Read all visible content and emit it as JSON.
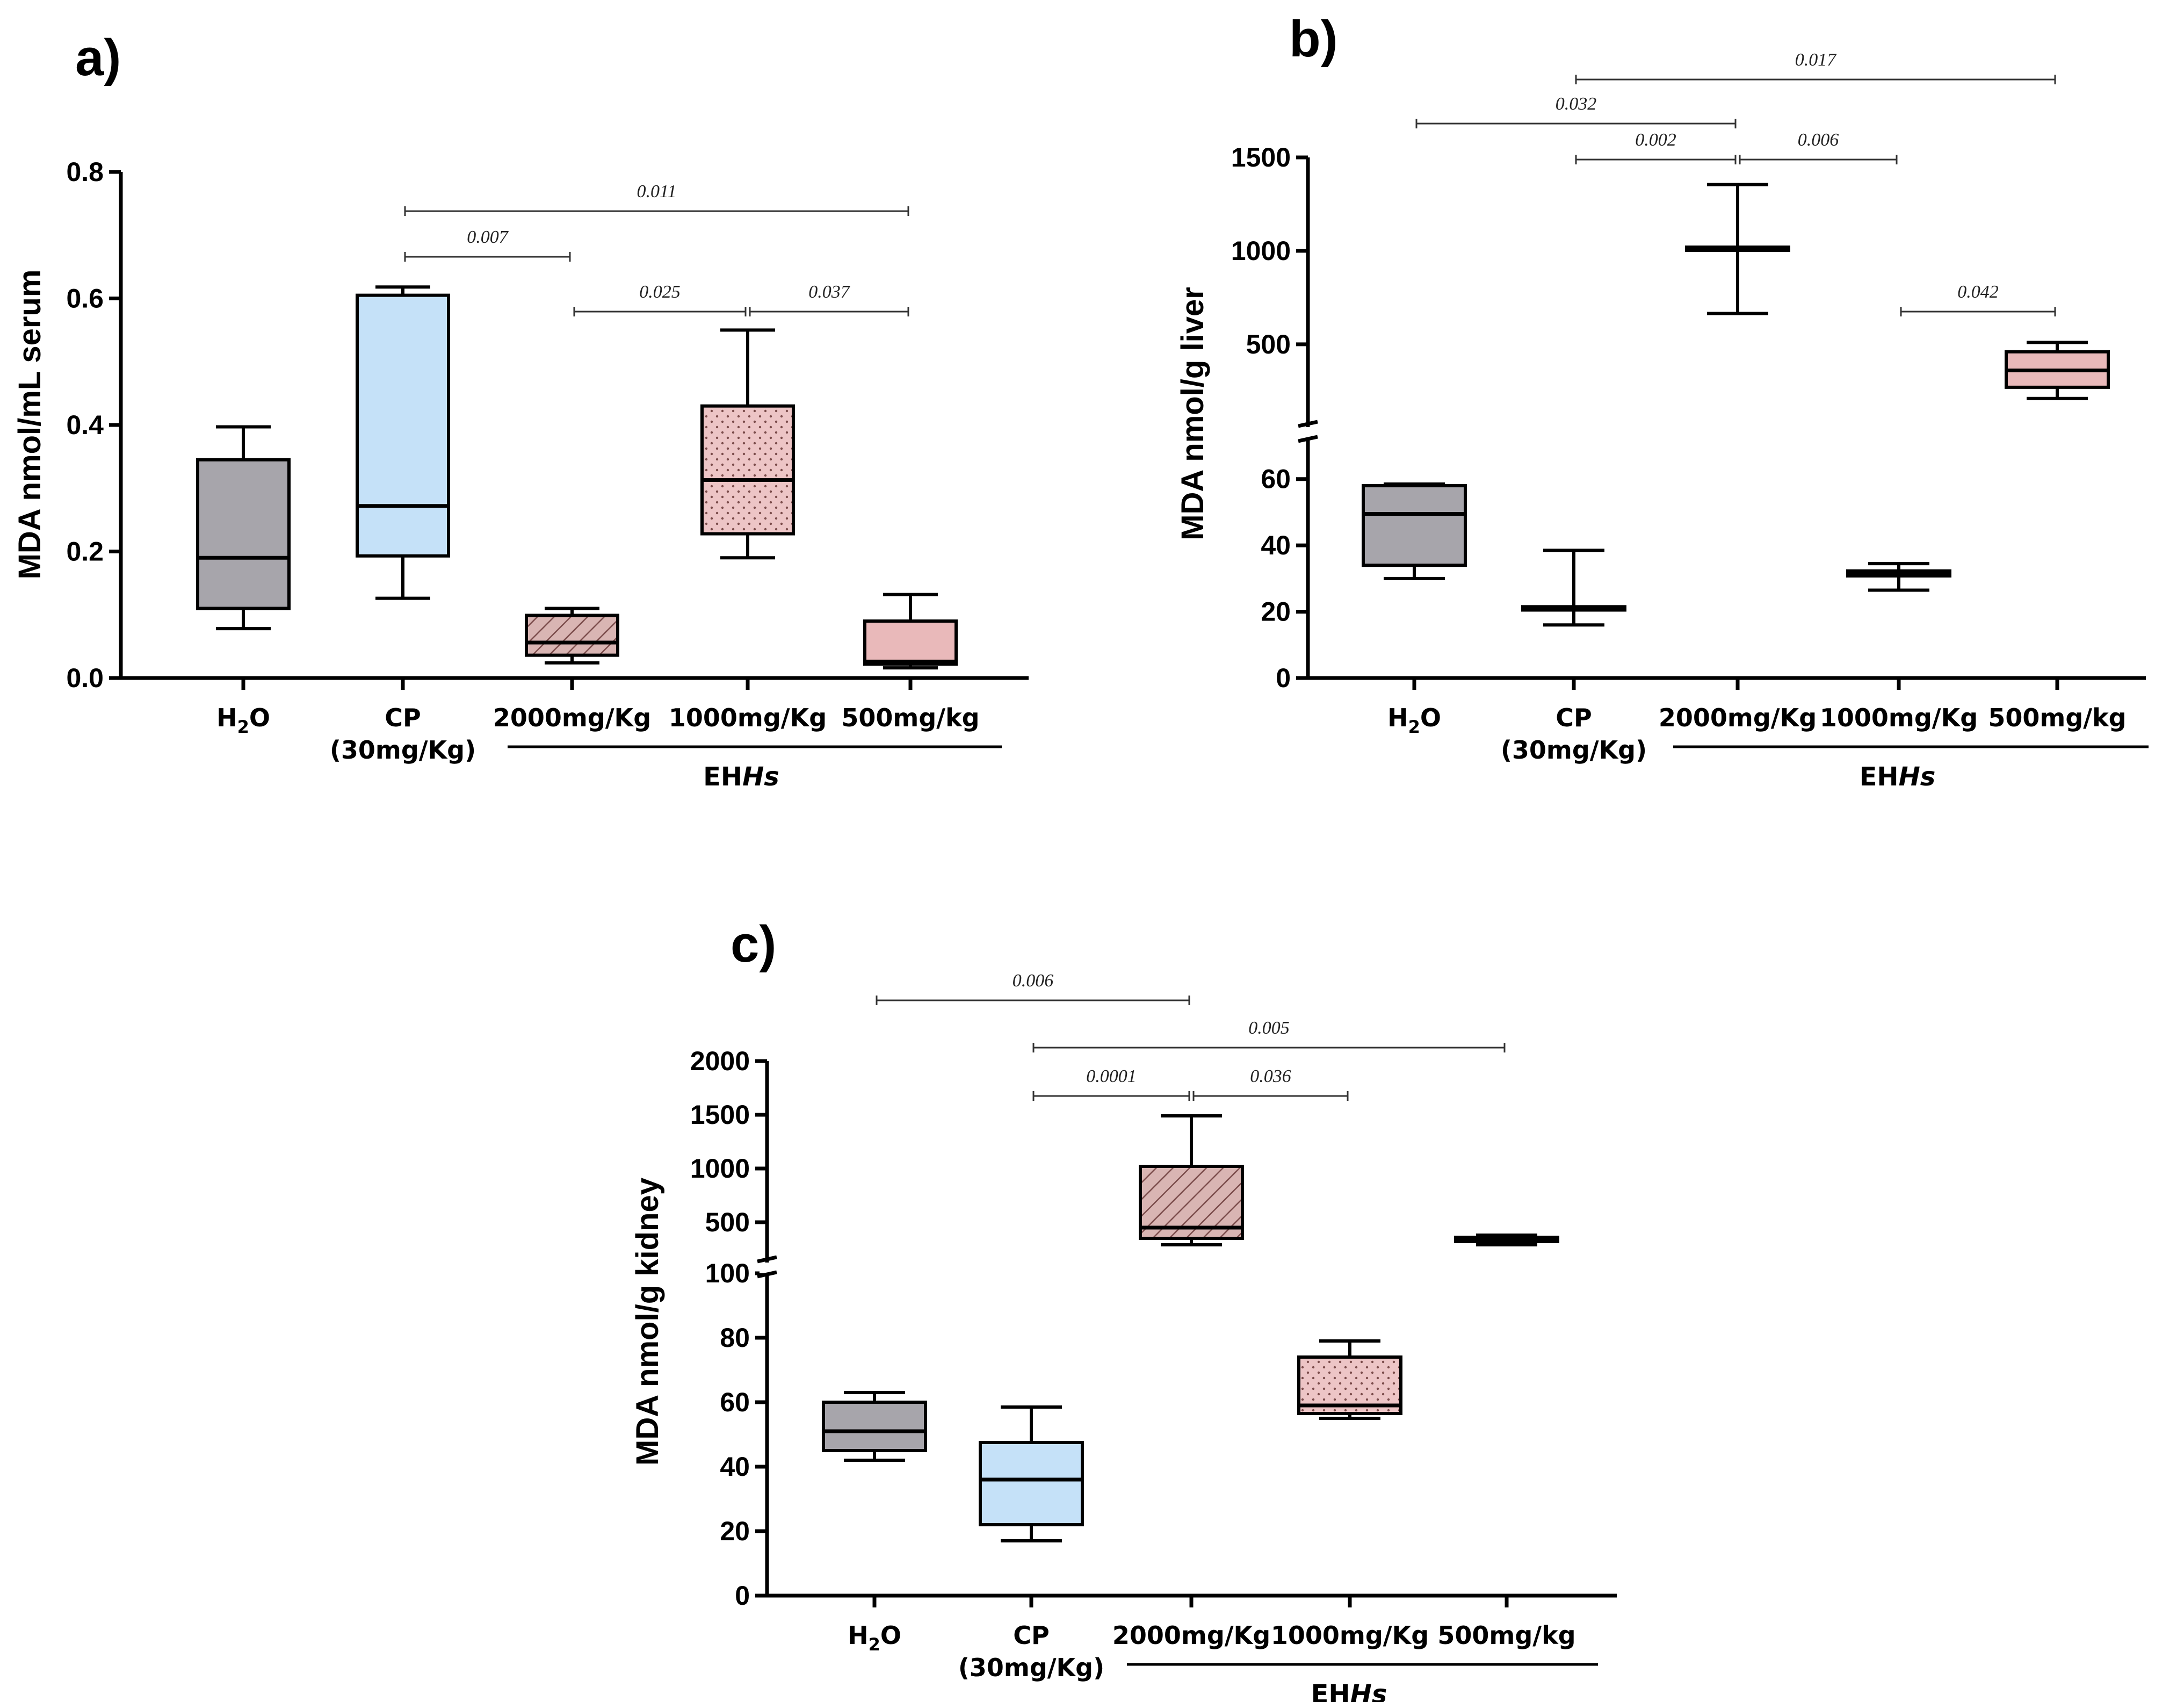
{
  "colors": {
    "h2o": "#a7a5ab",
    "cp": "#c5e1f8",
    "pink": "#e9b9ba",
    "hatch_bg": "#d9b5b3",
    "hatch_line": "#7a4b4a",
    "dot": "#7a4b4a"
  },
  "chart_data": [
    {
      "type": "box",
      "panel": "a)",
      "ylabel": "MDA nmol/mL serum",
      "ylim": [
        0,
        0.8
      ],
      "yticks": [
        "0.0",
        "0.2",
        "0.4",
        "0.6",
        "0.8"
      ],
      "categories": [
        "H2O",
        "CP (30mg/Kg)",
        "2000mg/Kg",
        "1000mg/Kg",
        "500mg/kg"
      ],
      "group_label": "EHHs",
      "series": [
        {
          "name": "H2O",
          "min": 0.078,
          "q1": 0.11,
          "median": 0.19,
          "q3": 0.345,
          "max": 0.397,
          "fill": "solid-gray"
        },
        {
          "name": "CP (30mg/Kg)",
          "min": 0.126,
          "q1": 0.193,
          "median": 0.272,
          "q3": 0.605,
          "max": 0.618,
          "fill": "solid-blue"
        },
        {
          "name": "2000mg/Kg",
          "min": 0.024,
          "q1": 0.036,
          "median": 0.056,
          "q3": 0.099,
          "max": 0.11,
          "fill": "hatch"
        },
        {
          "name": "1000mg/Kg",
          "min": 0.19,
          "q1": 0.228,
          "median": 0.313,
          "q3": 0.43,
          "max": 0.55,
          "fill": "dots"
        },
        {
          "name": "500mg/kg",
          "min": 0.016,
          "q1": 0.022,
          "median": 0.026,
          "q3": 0.09,
          "max": 0.132,
          "fill": "solid-pink"
        }
      ],
      "comparisons": [
        {
          "from": 1,
          "to": 4,
          "p": "0.011",
          "level": 4
        },
        {
          "from": 1,
          "to": 2,
          "p": "0.007",
          "level": 3
        },
        {
          "from": 2,
          "to": 3,
          "p": "0.025",
          "level": 1
        },
        {
          "from": 3,
          "to": 4,
          "p": "0.037",
          "level": 1
        }
      ]
    },
    {
      "type": "box",
      "panel": "b)",
      "ylabel": "MDA nmol/g liver",
      "broken_axis": true,
      "lower_range": [
        0,
        70
      ],
      "upper_range": [
        100,
        1500
      ],
      "yticks_lower": [
        "0",
        "20",
        "40",
        "60"
      ],
      "yticks_upper": [
        "500",
        "1000",
        "1500"
      ],
      "categories": [
        "H2O",
        "CP (30mg/Kg)",
        "2000mg/Kg",
        "1000mg/Kg",
        "500mg/kg"
      ],
      "group_label": "EHHs",
      "series": [
        {
          "name": "H2O",
          "min": 30,
          "q1": 34,
          "median": 49.5,
          "q3": 58,
          "max": 58.5,
          "fill": "solid-gray"
        },
        {
          "name": "CP (30mg/Kg)",
          "min": 16,
          "q1": 20.5,
          "median": 21,
          "q3": 21.5,
          "max": 38.5,
          "fill": "solid-blue"
        },
        {
          "name": "2000mg/Kg",
          "min": 665,
          "q1": 1010,
          "median": 1015,
          "q3": 1020,
          "max": 1355,
          "fill": "solid-gray"
        },
        {
          "name": "1000mg/Kg",
          "min": 26.5,
          "q1": 30.8,
          "median": 31.5,
          "q3": 32.3,
          "max": 34.5,
          "fill": "solid-blue"
        },
        {
          "name": "500mg/kg",
          "min": 210,
          "q1": 270,
          "median": 360,
          "q3": 460,
          "max": 510,
          "fill": "solid-pink"
        }
      ],
      "comparisons": [
        {
          "from": 1,
          "to": 4,
          "p": "0.017",
          "level": 4
        },
        {
          "from": 0,
          "to": 2,
          "p": "0.032",
          "level": 3
        },
        {
          "from": 1,
          "to": 2,
          "p": "0.002",
          "level": 2
        },
        {
          "from": 2,
          "to": 3,
          "p": "0.006",
          "level": 2
        },
        {
          "from": 3,
          "to": 4,
          "p": "0.042",
          "level": 1
        }
      ]
    },
    {
      "type": "box",
      "panel": "c)",
      "ylabel": "MDA nmol/g kidney",
      "broken_axis": true,
      "lower_range": [
        0,
        100
      ],
      "upper_range": [
        100,
        2000
      ],
      "yticks_lower": [
        "0",
        "20",
        "40",
        "60",
        "80",
        "100"
      ],
      "yticks_upper": [
        "500",
        "1000",
        "1500",
        "2000"
      ],
      "categories": [
        "H2O",
        "CP (30mg/Kg)",
        "2000mg/Kg",
        "1000mg/Kg",
        "500mg/kg"
      ],
      "group_label": "EHHs",
      "series": [
        {
          "name": "H2O",
          "min": 42,
          "q1": 45,
          "median": 51,
          "q3": 60,
          "max": 63,
          "fill": "solid-gray"
        },
        {
          "name": "CP (30mg/Kg)",
          "min": 17,
          "q1": 22,
          "median": 36,
          "q3": 47.5,
          "max": 58.5,
          "fill": "solid-blue"
        },
        {
          "name": "2000mg/Kg",
          "min": 290,
          "q1": 350,
          "median": 450,
          "q3": 1020,
          "max": 1490,
          "fill": "hatch"
        },
        {
          "name": "1000mg/Kg",
          "min": 55,
          "q1": 56.5,
          "median": 59,
          "q3": 74,
          "max": 79,
          "fill": "dots"
        },
        {
          "name": "500mg/kg",
          "min": 290,
          "q1": 320,
          "median": 340,
          "q3": 360,
          "max": 380,
          "fill": "solid-gray"
        }
      ],
      "comparisons": [
        {
          "from": 0,
          "to": 2,
          "p": "0.006",
          "level": 4
        },
        {
          "from": 1,
          "to": 4,
          "p": "0.005",
          "level": 3
        },
        {
          "from": 1,
          "to": 2,
          "p": "0.0001",
          "level": 2
        },
        {
          "from": 2,
          "to": 3,
          "p": "0.036",
          "level": 2
        }
      ]
    }
  ]
}
